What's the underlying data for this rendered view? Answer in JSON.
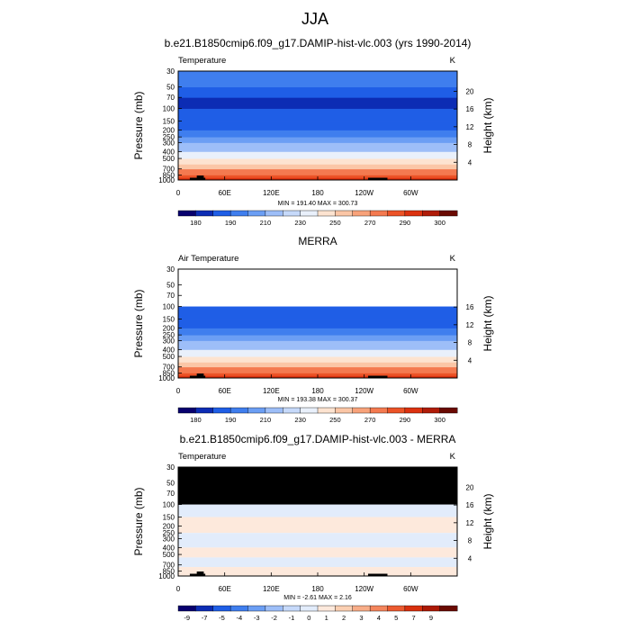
{
  "figure": {
    "title": "JJA"
  },
  "chart_data": [
    {
      "type": "heatmap",
      "title": "b.e21.B1850cmip6.f09_g17.DAMIP-hist-vlc.003 (yrs 1990-2014)",
      "left_label": "Temperature",
      "units": "K",
      "xlabel": "",
      "ylabel": "Pressure (mb)",
      "y2label": "Height (km)",
      "xticks": [
        "0",
        "60E",
        "120E",
        "180",
        "120W",
        "60W"
      ],
      "xticks_lon": [
        0,
        60,
        120,
        180,
        240,
        300
      ],
      "xlim": [
        0,
        360
      ],
      "ylim": [
        1000,
        30
      ],
      "yticks": [
        30,
        50,
        70,
        100,
        150,
        200,
        250,
        300,
        400,
        500,
        700,
        850,
        1000
      ],
      "y2ticks": [
        4,
        8,
        12,
        16,
        20
      ],
      "min_max": "MIN = 191.40  MAX = 300.73",
      "colorbar": {
        "labels": [
          "180",
          "190",
          "210",
          "230",
          "250",
          "270",
          "290",
          "300"
        ],
        "colors": [
          "#08006e",
          "#0c2cb4",
          "#1f5ee6",
          "#3f7eee",
          "#6b9ef4",
          "#9dbef8",
          "#c6d9fa",
          "#e9f0fb",
          "#fde3d0",
          "#fbc6a6",
          "#f8a27a",
          "#f47a50",
          "#ec5327",
          "#dc3210",
          "#b01c08",
          "#6a0a02"
        ]
      },
      "profile": [
        {
          "p": 1000,
          "v": 296
        },
        {
          "p": 925,
          "v": 290
        },
        {
          "p": 850,
          "v": 285
        },
        {
          "p": 700,
          "v": 277
        },
        {
          "p": 600,
          "v": 268
        },
        {
          "p": 500,
          "v": 259
        },
        {
          "p": 400,
          "v": 247
        },
        {
          "p": 300,
          "v": 232
        },
        {
          "p": 250,
          "v": 223
        },
        {
          "p": 200,
          "v": 213
        },
        {
          "p": 150,
          "v": 204
        },
        {
          "p": 100,
          "v": 196
        },
        {
          "p": 70,
          "v": 200
        },
        {
          "p": 50,
          "v": 206
        },
        {
          "p": 30,
          "v": 214
        }
      ],
      "missing_above_p": null
    },
    {
      "type": "heatmap",
      "title": "MERRA",
      "left_label": "Air Temperature",
      "units": "K",
      "xlabel": "",
      "ylabel": "Pressure (mb)",
      "y2label": "Height (km)",
      "xticks": [
        "0",
        "60E",
        "120E",
        "180",
        "120W",
        "60W"
      ],
      "xticks_lon": [
        0,
        60,
        120,
        180,
        240,
        300
      ],
      "xlim": [
        0,
        360
      ],
      "ylim": [
        1000,
        30
      ],
      "yticks": [
        30,
        50,
        70,
        100,
        150,
        200,
        250,
        300,
        400,
        500,
        700,
        850,
        1000
      ],
      "y2ticks": [
        4,
        8,
        12,
        16
      ],
      "min_max": "MIN = 193.38  MAX = 300.37",
      "colorbar": {
        "labels": [
          "180",
          "190",
          "210",
          "230",
          "250",
          "270",
          "290",
          "300"
        ],
        "colors": [
          "#08006e",
          "#0c2cb4",
          "#1f5ee6",
          "#3f7eee",
          "#6b9ef4",
          "#9dbef8",
          "#c6d9fa",
          "#e9f0fb",
          "#fde3d0",
          "#fbc6a6",
          "#f8a27a",
          "#f47a50",
          "#ec5327",
          "#dc3210",
          "#b01c08",
          "#6a0a02"
        ]
      },
      "profile": [
        {
          "p": 1000,
          "v": 296
        },
        {
          "p": 925,
          "v": 290
        },
        {
          "p": 850,
          "v": 285
        },
        {
          "p": 700,
          "v": 277
        },
        {
          "p": 600,
          "v": 268
        },
        {
          "p": 500,
          "v": 259
        },
        {
          "p": 400,
          "v": 247
        },
        {
          "p": 300,
          "v": 232
        },
        {
          "p": 250,
          "v": 223
        },
        {
          "p": 200,
          "v": 214
        },
        {
          "p": 150,
          "v": 205
        },
        {
          "p": 100,
          "v": 197
        }
      ],
      "missing_above_p": 100
    },
    {
      "type": "heatmap",
      "title": "b.e21.B1850cmip6.f09_g17.DAMIP-hist-vlc.003 - MERRA",
      "left_label": "Temperature",
      "units": "K",
      "xlabel": "",
      "ylabel": "Pressure (mb)",
      "y2label": "Height (km)",
      "xticks": [
        "0",
        "60E",
        "120E",
        "180",
        "120W",
        "60W"
      ],
      "xticks_lon": [
        0,
        60,
        120,
        180,
        240,
        300
      ],
      "xlim": [
        0,
        360
      ],
      "ylim": [
        1000,
        30
      ],
      "yticks": [
        30,
        50,
        70,
        100,
        150,
        200,
        250,
        300,
        400,
        500,
        700,
        850,
        1000
      ],
      "y2ticks": [
        4,
        8,
        12,
        16,
        20
      ],
      "min_max": "MIN =  -2.61  MAX =   2.16",
      "colorbar": {
        "labels": [
          "-9",
          "-7",
          "-5",
          "-4",
          "-3",
          "-2",
          "-1",
          "0",
          "1",
          "2",
          "3",
          "4",
          "5",
          "7",
          "9"
        ],
        "colors": [
          "#08006e",
          "#0c2cb4",
          "#1f5ee6",
          "#3f7eee",
          "#6b9ef4",
          "#9dbef8",
          "#c6d9fa",
          "#e2ecfb",
          "#fde9dc",
          "#fbcfb2",
          "#f8ad88",
          "#f4855c",
          "#ec5a30",
          "#d8300e",
          "#ac1906",
          "#6a0a02"
        ]
      },
      "diff_bands": [
        {
          "p_top": 100,
          "p_bot": 150,
          "v": -0.5
        },
        {
          "p_top": 150,
          "p_bot": 250,
          "v": 0.4
        },
        {
          "p_top": 250,
          "p_bot": 400,
          "v": -0.6
        },
        {
          "p_top": 400,
          "p_bot": 550,
          "v": 0.4
        },
        {
          "p_top": 550,
          "p_bot": 750,
          "v": -0.4
        },
        {
          "p_top": 750,
          "p_bot": 1000,
          "v": 0.3
        }
      ],
      "missing_above_p": 100
    }
  ]
}
